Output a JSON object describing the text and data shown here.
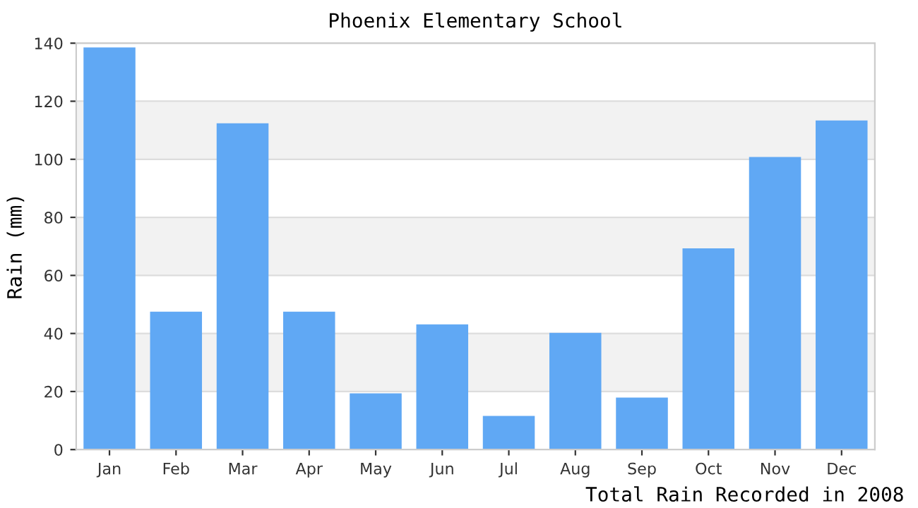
{
  "chart_data": {
    "type": "bar",
    "title": "Phoenix Elementary School",
    "ylabel": "Rain (mm)",
    "categories": [
      "Jan",
      "Feb",
      "Mar",
      "Apr",
      "May",
      "Jun",
      "Jul",
      "Aug",
      "Sep",
      "Oct",
      "Nov",
      "Dec"
    ],
    "values": [
      138.5,
      47.5,
      112.4,
      47.5,
      19.4,
      43.1,
      11.6,
      40.2,
      17.9,
      69.3,
      100.8,
      113.4
    ],
    "color": "#60a8f4",
    "ylim": [
      0,
      140
    ],
    "yticks": [
      0,
      20,
      40,
      60,
      80,
      100,
      120,
      140
    ],
    "grid": "y",
    "bands": [
      {
        "axis": "y",
        "from": 20,
        "to": 40,
        "color": "#f2f2f2"
      },
      {
        "axis": "y",
        "from": 60,
        "to": 80,
        "color": "#f2f2f2"
      },
      {
        "axis": "y",
        "from": 100,
        "to": 120,
        "color": "#f2f2f2"
      }
    ],
    "annotations": [
      "Total Rain Recorded in 2008"
    ]
  }
}
